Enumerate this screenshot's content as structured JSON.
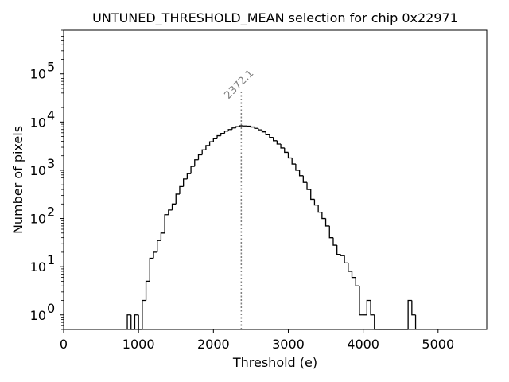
{
  "chart_data": {
    "type": "histogram",
    "title": "UNTUNED_THRESHOLD_MEAN selection for chip 0x22971",
    "xlabel": "Threshold (e)",
    "ylabel": "Number of pixels",
    "xlim": [
      0,
      5650
    ],
    "ylim": [
      0.5,
      800000
    ],
    "yscale": "log",
    "grid": false,
    "bin_width": 50,
    "bins_start": 850,
    "bin_counts": [
      1,
      0,
      1,
      0,
      2,
      5,
      15,
      20,
      35,
      50,
      120,
      150,
      200,
      320,
      460,
      660,
      850,
      1200,
      1650,
      2100,
      2650,
      3250,
      3900,
      4500,
      5200,
      5800,
      6500,
      7000,
      7550,
      8000,
      8350,
      8300,
      8200,
      7900,
      7400,
      6900,
      6250,
      5450,
      4800,
      4100,
      3500,
      2900,
      2350,
      1800,
      1350,
      1000,
      770,
      560,
      400,
      250,
      190,
      135,
      100,
      70,
      40,
      28,
      18,
      17,
      12,
      8,
      6,
      4,
      1,
      1,
      2,
      1,
      0,
      0,
      0,
      0,
      0,
      0,
      0,
      0,
      0,
      2,
      1
    ],
    "x_ticks": [
      {
        "value": 0,
        "label": "0"
      },
      {
        "value": 1000,
        "label": "1000"
      },
      {
        "value": 2000,
        "label": "2000"
      },
      {
        "value": 3000,
        "label": "3000"
      },
      {
        "value": 4000,
        "label": "4000"
      },
      {
        "value": 5000,
        "label": "5000"
      }
    ],
    "y_ticks": [
      {
        "value": 1,
        "label": "10",
        "exp": "0"
      },
      {
        "value": 10,
        "label": "10",
        "exp": "1"
      },
      {
        "value": 100,
        "label": "10",
        "exp": "2"
      },
      {
        "value": 1000,
        "label": "10",
        "exp": "3"
      },
      {
        "value": 10000,
        "label": "10",
        "exp": "4"
      },
      {
        "value": 100000,
        "label": "10",
        "exp": "5"
      }
    ],
    "mean_line": {
      "value": 2372.1,
      "label": "2372.1",
      "y_top": 45000,
      "color": "#808080"
    },
    "line_color": "#000000"
  }
}
